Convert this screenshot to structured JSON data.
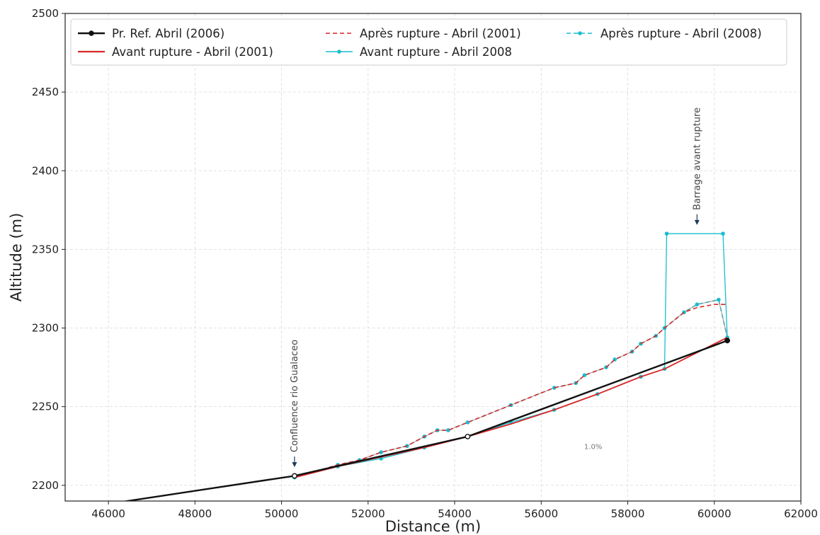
{
  "chart_data": {
    "type": "line",
    "title": "",
    "xlabel": "Distance (m)",
    "ylabel": "Altitude (m)",
    "xlim": [
      45000,
      62000
    ],
    "ylim": [
      2190,
      2500
    ],
    "xticks": [
      46000,
      48000,
      50000,
      52000,
      54000,
      56000,
      58000,
      60000,
      62000
    ],
    "yticks": [
      2200,
      2250,
      2300,
      2350,
      2400,
      2450,
      2500
    ],
    "grid": true,
    "legend_position": "top",
    "series": [
      {
        "name": "Pr. Ref. Abril (2006)",
        "color": "#111111",
        "style": "solid",
        "marker": "circle",
        "x": [
          45000,
          50300,
          54300,
          60300
        ],
        "y": [
          2184,
          2206,
          2231,
          2292
        ],
        "marker_indices": [
          1,
          2,
          3
        ]
      },
      {
        "name": "Avant rupture - Abril (2001)",
        "color": "#d62728",
        "style": "solid",
        "marker": "none",
        "x": [
          50300,
          51300,
          52300,
          53300,
          54300,
          55300,
          56300,
          57300,
          58300,
          58850,
          59500,
          60300
        ],
        "y": [
          2205,
          2212,
          2218,
          2224,
          2231,
          2239,
          2248,
          2258,
          2269,
          2274,
          2283,
          2294
        ]
      },
      {
        "name": "Après rupture - Abril (2001)",
        "color": "#d62728",
        "style": "dashed",
        "marker": "none",
        "x": [
          50300,
          51300,
          51800,
          52300,
          52900,
          53300,
          53600,
          53850,
          54300,
          55300,
          56300,
          56800,
          57000,
          57500,
          57700,
          58100,
          58300,
          58650,
          58850,
          59300,
          59600,
          60000,
          60300
        ],
        "y": [
          2205,
          2213,
          2216,
          2221,
          2225,
          2231,
          2235,
          2235,
          2240,
          2251,
          2262,
          2265,
          2270,
          2275,
          2280,
          2285,
          2290,
          2295,
          2300,
          2310,
          2313,
          2315,
          2315
        ]
      },
      {
        "name": "Avant rupture - Abril 2008",
        "color": "#17becf",
        "style": "solid",
        "marker": "dot",
        "x": [
          50300,
          51300,
          52300,
          53300,
          54300,
          55300,
          56300,
          57300,
          58300,
          58850,
          58900,
          60200,
          60300
        ],
        "y": [
          2205,
          2212,
          2217,
          2224,
          2231,
          2240,
          2248,
          2258,
          2269,
          2274,
          2360,
          2360,
          2294
        ]
      },
      {
        "name": "Après rupture - Abril (2008)",
        "color": "#17becf",
        "style": "dashed",
        "marker": "dot",
        "x": [
          50300,
          51300,
          51800,
          52300,
          52900,
          53300,
          53600,
          53850,
          54300,
          55300,
          56300,
          56800,
          57000,
          57500,
          57700,
          58100,
          58300,
          58650,
          58850,
          59300,
          59600,
          60100,
          60300
        ],
        "y": [
          2205,
          2213,
          2216,
          2221,
          2225,
          2231,
          2235,
          2235,
          2240,
          2251,
          2262,
          2265,
          2270,
          2275,
          2280,
          2285,
          2290,
          2295,
          2300,
          2310,
          2315,
          2318,
          2294
        ]
      }
    ],
    "annotations": [
      {
        "text": "Confluence rio Gualaceo",
        "x": 50300,
        "y": 2212,
        "orientation": "vertical",
        "arrow": "down"
      },
      {
        "text": "Barrage avant rupture",
        "x": 59600,
        "y": 2366,
        "orientation": "vertical",
        "arrow": "down"
      },
      {
        "text": "1.0%",
        "x": 57200,
        "y": 2223,
        "orientation": "horizontal"
      }
    ]
  }
}
